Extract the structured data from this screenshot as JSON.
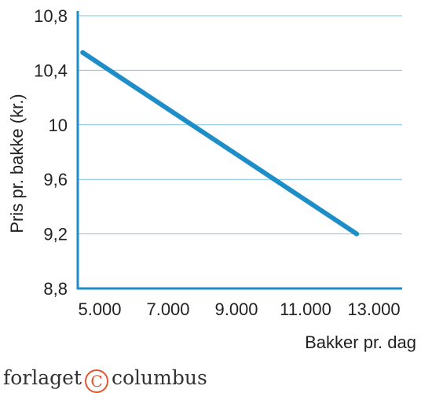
{
  "chart_data": {
    "type": "line",
    "title": "",
    "xlabel": "Bakker pr. dag",
    "ylabel": "Pris pr. bakke (kr.)",
    "x_ticks": [
      "5.000",
      "7.000",
      "9.000",
      "11.000",
      "13.000"
    ],
    "y_ticks": [
      "8,8",
      "9,2",
      "9,6",
      "10",
      "10,4",
      "10,8"
    ],
    "xlim": [
      4500,
      13000
    ],
    "ylim": [
      8.8,
      10.8
    ],
    "grid": true,
    "series": [
      {
        "x": [
          4500,
          12500
        ],
        "y": [
          10.53,
          9.2
        ]
      }
    ],
    "colors": {
      "line": "#1e8ec9",
      "grid": "#7fc4e6"
    }
  },
  "footer": {
    "left_text": "forlaget",
    "logo_glyph": "C",
    "right_text": "columbus"
  }
}
